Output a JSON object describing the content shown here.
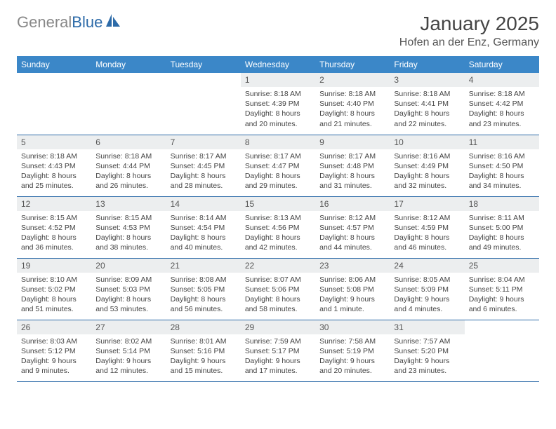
{
  "brand": {
    "part1": "General",
    "part2": "Blue"
  },
  "title": "January 2025",
  "location": "Hofen an der Enz, Germany",
  "colors": {
    "header_bg": "#3b87c8",
    "border": "#2c6aa8",
    "daynum_bg": "#eceeef",
    "text": "#444444",
    "logo_gray": "#888888",
    "logo_blue": "#2c6aa8"
  },
  "weekdays": [
    "Sunday",
    "Monday",
    "Tuesday",
    "Wednesday",
    "Thursday",
    "Friday",
    "Saturday"
  ],
  "weeks": [
    [
      null,
      null,
      null,
      {
        "n": "1",
        "sr": "8:18 AM",
        "ss": "4:39 PM",
        "dl": "8 hours and 20 minutes."
      },
      {
        "n": "2",
        "sr": "8:18 AM",
        "ss": "4:40 PM",
        "dl": "8 hours and 21 minutes."
      },
      {
        "n": "3",
        "sr": "8:18 AM",
        "ss": "4:41 PM",
        "dl": "8 hours and 22 minutes."
      },
      {
        "n": "4",
        "sr": "8:18 AM",
        "ss": "4:42 PM",
        "dl": "8 hours and 23 minutes."
      }
    ],
    [
      {
        "n": "5",
        "sr": "8:18 AM",
        "ss": "4:43 PM",
        "dl": "8 hours and 25 minutes."
      },
      {
        "n": "6",
        "sr": "8:18 AM",
        "ss": "4:44 PM",
        "dl": "8 hours and 26 minutes."
      },
      {
        "n": "7",
        "sr": "8:17 AM",
        "ss": "4:45 PM",
        "dl": "8 hours and 28 minutes."
      },
      {
        "n": "8",
        "sr": "8:17 AM",
        "ss": "4:47 PM",
        "dl": "8 hours and 29 minutes."
      },
      {
        "n": "9",
        "sr": "8:17 AM",
        "ss": "4:48 PM",
        "dl": "8 hours and 31 minutes."
      },
      {
        "n": "10",
        "sr": "8:16 AM",
        "ss": "4:49 PM",
        "dl": "8 hours and 32 minutes."
      },
      {
        "n": "11",
        "sr": "8:16 AM",
        "ss": "4:50 PM",
        "dl": "8 hours and 34 minutes."
      }
    ],
    [
      {
        "n": "12",
        "sr": "8:15 AM",
        "ss": "4:52 PM",
        "dl": "8 hours and 36 minutes."
      },
      {
        "n": "13",
        "sr": "8:15 AM",
        "ss": "4:53 PM",
        "dl": "8 hours and 38 minutes."
      },
      {
        "n": "14",
        "sr": "8:14 AM",
        "ss": "4:54 PM",
        "dl": "8 hours and 40 minutes."
      },
      {
        "n": "15",
        "sr": "8:13 AM",
        "ss": "4:56 PM",
        "dl": "8 hours and 42 minutes."
      },
      {
        "n": "16",
        "sr": "8:12 AM",
        "ss": "4:57 PM",
        "dl": "8 hours and 44 minutes."
      },
      {
        "n": "17",
        "sr": "8:12 AM",
        "ss": "4:59 PM",
        "dl": "8 hours and 46 minutes."
      },
      {
        "n": "18",
        "sr": "8:11 AM",
        "ss": "5:00 PM",
        "dl": "8 hours and 49 minutes."
      }
    ],
    [
      {
        "n": "19",
        "sr": "8:10 AM",
        "ss": "5:02 PM",
        "dl": "8 hours and 51 minutes."
      },
      {
        "n": "20",
        "sr": "8:09 AM",
        "ss": "5:03 PM",
        "dl": "8 hours and 53 minutes."
      },
      {
        "n": "21",
        "sr": "8:08 AM",
        "ss": "5:05 PM",
        "dl": "8 hours and 56 minutes."
      },
      {
        "n": "22",
        "sr": "8:07 AM",
        "ss": "5:06 PM",
        "dl": "8 hours and 58 minutes."
      },
      {
        "n": "23",
        "sr": "8:06 AM",
        "ss": "5:08 PM",
        "dl": "9 hours and 1 minute."
      },
      {
        "n": "24",
        "sr": "8:05 AM",
        "ss": "5:09 PM",
        "dl": "9 hours and 4 minutes."
      },
      {
        "n": "25",
        "sr": "8:04 AM",
        "ss": "5:11 PM",
        "dl": "9 hours and 6 minutes."
      }
    ],
    [
      {
        "n": "26",
        "sr": "8:03 AM",
        "ss": "5:12 PM",
        "dl": "9 hours and 9 minutes."
      },
      {
        "n": "27",
        "sr": "8:02 AM",
        "ss": "5:14 PM",
        "dl": "9 hours and 12 minutes."
      },
      {
        "n": "28",
        "sr": "8:01 AM",
        "ss": "5:16 PM",
        "dl": "9 hours and 15 minutes."
      },
      {
        "n": "29",
        "sr": "7:59 AM",
        "ss": "5:17 PM",
        "dl": "9 hours and 17 minutes."
      },
      {
        "n": "30",
        "sr": "7:58 AM",
        "ss": "5:19 PM",
        "dl": "9 hours and 20 minutes."
      },
      {
        "n": "31",
        "sr": "7:57 AM",
        "ss": "5:20 PM",
        "dl": "9 hours and 23 minutes."
      },
      null
    ]
  ]
}
